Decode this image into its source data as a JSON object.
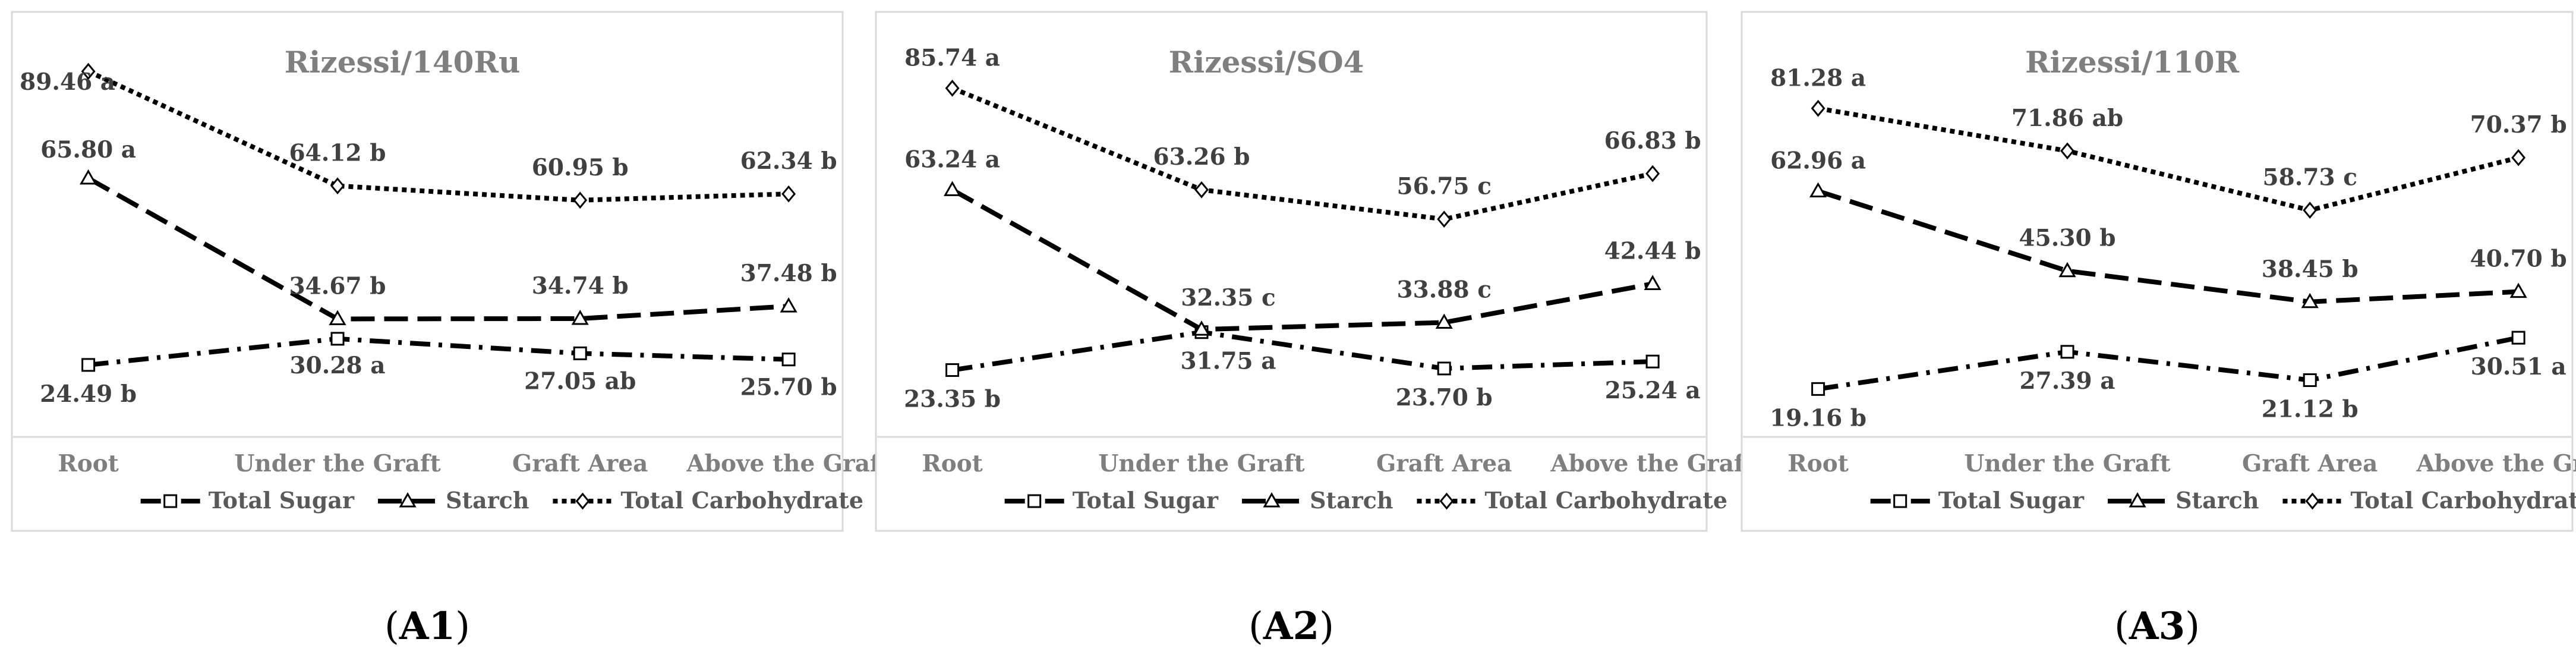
{
  "chart_data": [
    {
      "type": "line",
      "panel_label": "A1",
      "title": "Rizessi/140Ru",
      "categories": [
        "Root",
        "Under the Graft",
        "Graft Area",
        "Above the Graft"
      ],
      "ylim": [
        0,
        100
      ],
      "xlabel": "",
      "ylabel": "",
      "legend_position": "bottom",
      "series": [
        {
          "name": "Total Sugar",
          "values": [
            24.49,
            30.28,
            27.05,
            25.7
          ],
          "labels": [
            "24.49 b",
            "30.28 a",
            "27.05 ab",
            "25.70 b"
          ]
        },
        {
          "name": "Starch",
          "values": [
            65.8,
            34.67,
            34.74,
            37.48
          ],
          "labels": [
            "65.80 a",
            "34.67 b",
            "34.74 b",
            "37.48 b"
          ]
        },
        {
          "name": "Total Carbohydrate",
          "values": [
            89.46,
            64.12,
            60.95,
            62.34
          ],
          "labels": [
            "89.46 a",
            "64.12 b",
            "60.95 b",
            "62.34 b"
          ]
        }
      ]
    },
    {
      "type": "line",
      "panel_label": "A2",
      "title": "Rizessi/SO4",
      "categories": [
        "Root",
        "Under the Graft",
        "Graft Area",
        "Above the Graft"
      ],
      "ylim": [
        0,
        100
      ],
      "xlabel": "",
      "ylabel": "",
      "legend_position": "bottom",
      "series": [
        {
          "name": "Total Sugar",
          "values": [
            23.35,
            31.75,
            23.7,
            25.24
          ],
          "labels": [
            "23.35 b",
            "31.75 a",
            "23.70 b",
            "25.24 a"
          ]
        },
        {
          "name": "Starch",
          "values": [
            63.24,
            32.35,
            33.88,
            42.44
          ],
          "labels": [
            "63.24 a",
            "32.35 c",
            "33.88 c",
            "42.44 b"
          ]
        },
        {
          "name": "Total Carbohydrate",
          "values": [
            85.74,
            63.26,
            56.75,
            66.83
          ],
          "labels": [
            "85.74 a",
            "63.26 b",
            "56.75 c",
            "66.83 b"
          ]
        }
      ]
    },
    {
      "type": "line",
      "panel_label": "A3",
      "title": "Rizessi/110R",
      "categories": [
        "Root",
        "Under the Graft",
        "Graft Area",
        "Above the Graft"
      ],
      "ylim": [
        0,
        100
      ],
      "xlabel": "",
      "ylabel": "",
      "legend_position": "bottom",
      "series": [
        {
          "name": "Total Sugar",
          "values": [
            19.16,
            27.39,
            21.12,
            30.51
          ],
          "labels": [
            "19.16 b",
            "27.39 a",
            "21.12 b",
            "30.51 a"
          ]
        },
        {
          "name": "Starch",
          "values": [
            62.96,
            45.3,
            38.45,
            40.7
          ],
          "labels": [
            "62.96 a",
            "45.30 b",
            "38.45 b",
            "40.70 b"
          ]
        },
        {
          "name": "Total Carbohydrate",
          "values": [
            81.28,
            71.86,
            58.73,
            70.37
          ],
          "labels": [
            "81.28 a",
            "71.86 ab",
            "58.73 c",
            "70.37 b"
          ]
        }
      ]
    }
  ],
  "series_styles": {
    "Total Sugar": {
      "dash": "dashdot",
      "marker": "square",
      "color": "#000000"
    },
    "Starch": {
      "dash": "dash",
      "marker": "triangle",
      "color": "#000000"
    },
    "Total Carbohydrate": {
      "dash": "dot",
      "marker": "diamond",
      "color": "#000000"
    }
  },
  "colors": {
    "panel_border": "#d9d9d9",
    "axis_line": "#d9d9d9",
    "title": "#7f7f7f",
    "tick": "#7f7f7f",
    "data_label": "#404040"
  }
}
